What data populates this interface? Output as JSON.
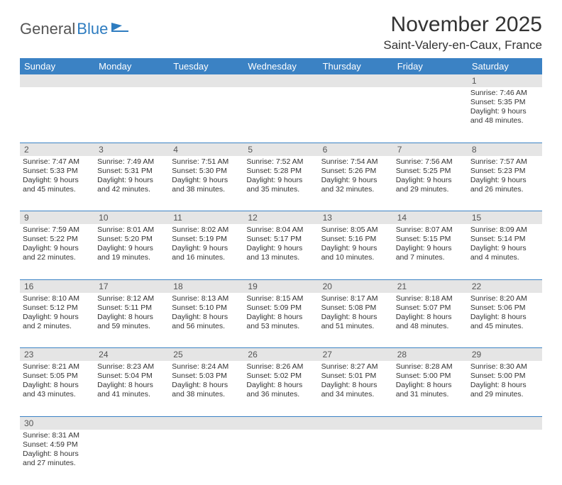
{
  "logo": {
    "text_general": "General",
    "text_blue": "Blue"
  },
  "title": "November 2025",
  "location": "Saint-Valery-en-Caux, France",
  "colors": {
    "header_bg": "#3b82c4",
    "header_fg": "#ffffff",
    "daynum_bg": "#e5e5e5",
    "rule": "#3b82c4"
  },
  "day_headers": [
    "Sunday",
    "Monday",
    "Tuesday",
    "Wednesday",
    "Thursday",
    "Friday",
    "Saturday"
  ],
  "weeks": [
    [
      null,
      null,
      null,
      null,
      null,
      null,
      {
        "n": "1",
        "sr": "7:46 AM",
        "ss": "5:35 PM",
        "dl": "9 hours and 48 minutes."
      }
    ],
    [
      {
        "n": "2",
        "sr": "7:47 AM",
        "ss": "5:33 PM",
        "dl": "9 hours and 45 minutes."
      },
      {
        "n": "3",
        "sr": "7:49 AM",
        "ss": "5:31 PM",
        "dl": "9 hours and 42 minutes."
      },
      {
        "n": "4",
        "sr": "7:51 AM",
        "ss": "5:30 PM",
        "dl": "9 hours and 38 minutes."
      },
      {
        "n": "5",
        "sr": "7:52 AM",
        "ss": "5:28 PM",
        "dl": "9 hours and 35 minutes."
      },
      {
        "n": "6",
        "sr": "7:54 AM",
        "ss": "5:26 PM",
        "dl": "9 hours and 32 minutes."
      },
      {
        "n": "7",
        "sr": "7:56 AM",
        "ss": "5:25 PM",
        "dl": "9 hours and 29 minutes."
      },
      {
        "n": "8",
        "sr": "7:57 AM",
        "ss": "5:23 PM",
        "dl": "9 hours and 26 minutes."
      }
    ],
    [
      {
        "n": "9",
        "sr": "7:59 AM",
        "ss": "5:22 PM",
        "dl": "9 hours and 22 minutes."
      },
      {
        "n": "10",
        "sr": "8:01 AM",
        "ss": "5:20 PM",
        "dl": "9 hours and 19 minutes."
      },
      {
        "n": "11",
        "sr": "8:02 AM",
        "ss": "5:19 PM",
        "dl": "9 hours and 16 minutes."
      },
      {
        "n": "12",
        "sr": "8:04 AM",
        "ss": "5:17 PM",
        "dl": "9 hours and 13 minutes."
      },
      {
        "n": "13",
        "sr": "8:05 AM",
        "ss": "5:16 PM",
        "dl": "9 hours and 10 minutes."
      },
      {
        "n": "14",
        "sr": "8:07 AM",
        "ss": "5:15 PM",
        "dl": "9 hours and 7 minutes."
      },
      {
        "n": "15",
        "sr": "8:09 AM",
        "ss": "5:14 PM",
        "dl": "9 hours and 4 minutes."
      }
    ],
    [
      {
        "n": "16",
        "sr": "8:10 AM",
        "ss": "5:12 PM",
        "dl": "9 hours and 2 minutes."
      },
      {
        "n": "17",
        "sr": "8:12 AM",
        "ss": "5:11 PM",
        "dl": "8 hours and 59 minutes."
      },
      {
        "n": "18",
        "sr": "8:13 AM",
        "ss": "5:10 PM",
        "dl": "8 hours and 56 minutes."
      },
      {
        "n": "19",
        "sr": "8:15 AM",
        "ss": "5:09 PM",
        "dl": "8 hours and 53 minutes."
      },
      {
        "n": "20",
        "sr": "8:17 AM",
        "ss": "5:08 PM",
        "dl": "8 hours and 51 minutes."
      },
      {
        "n": "21",
        "sr": "8:18 AM",
        "ss": "5:07 PM",
        "dl": "8 hours and 48 minutes."
      },
      {
        "n": "22",
        "sr": "8:20 AM",
        "ss": "5:06 PM",
        "dl": "8 hours and 45 minutes."
      }
    ],
    [
      {
        "n": "23",
        "sr": "8:21 AM",
        "ss": "5:05 PM",
        "dl": "8 hours and 43 minutes."
      },
      {
        "n": "24",
        "sr": "8:23 AM",
        "ss": "5:04 PM",
        "dl": "8 hours and 41 minutes."
      },
      {
        "n": "25",
        "sr": "8:24 AM",
        "ss": "5:03 PM",
        "dl": "8 hours and 38 minutes."
      },
      {
        "n": "26",
        "sr": "8:26 AM",
        "ss": "5:02 PM",
        "dl": "8 hours and 36 minutes."
      },
      {
        "n": "27",
        "sr": "8:27 AM",
        "ss": "5:01 PM",
        "dl": "8 hours and 34 minutes."
      },
      {
        "n": "28",
        "sr": "8:28 AM",
        "ss": "5:00 PM",
        "dl": "8 hours and 31 minutes."
      },
      {
        "n": "29",
        "sr": "8:30 AM",
        "ss": "5:00 PM",
        "dl": "8 hours and 29 minutes."
      }
    ],
    [
      {
        "n": "30",
        "sr": "8:31 AM",
        "ss": "4:59 PM",
        "dl": "8 hours and 27 minutes."
      },
      null,
      null,
      null,
      null,
      null,
      null
    ]
  ],
  "labels": {
    "sunrise": "Sunrise:",
    "sunset": "Sunset:",
    "daylight": "Daylight:"
  }
}
